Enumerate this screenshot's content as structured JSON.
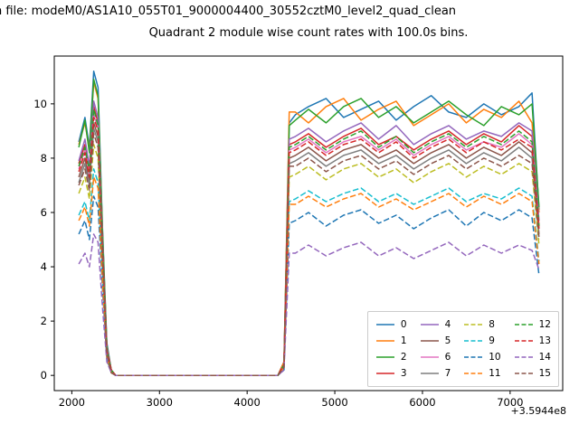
{
  "figure": {
    "suptitle": "n file: modeM0/AS1A10_055T01_9000004400_30552cztM0_level2_quad_clean",
    "axes_title": "Quadrant 2 module wise count rates with 100.0s bins.",
    "x_offset_label": "+3.5944e8"
  },
  "chart_data": {
    "type": "line",
    "title": "Quadrant 2 module wise count rates with 100.0s bins.",
    "xlabel": "",
    "ylabel": "",
    "x_offset": "+3.5944e8",
    "xlim": [
      1800,
      7600
    ],
    "ylim": [
      -0.56,
      11.76
    ],
    "xticks": [
      2000,
      3000,
      4000,
      5000,
      6000,
      7000
    ],
    "yticks": [
      0,
      2,
      4,
      6,
      8,
      10
    ],
    "grid": false,
    "legend_position": "lower right",
    "legend_columns": 4,
    "x": [
      2080,
      2150,
      2200,
      2250,
      2300,
      2350,
      2400,
      2450,
      2500,
      3000,
      3500,
      4000,
      4350,
      4420,
      4480,
      4550,
      4700,
      4900,
      5100,
      5300,
      5500,
      5700,
      5900,
      6100,
      6300,
      6500,
      6700,
      6900,
      7100,
      7250,
      7330
    ],
    "series": [
      {
        "name": "0",
        "color": "#1f77b4",
        "style": "solid",
        "values": [
          8.6,
          9.5,
          8.4,
          11.2,
          10.6,
          5.4,
          1.2,
          0.2,
          0,
          0,
          0,
          0,
          0,
          0.5,
          9.3,
          9.6,
          9.9,
          10.2,
          9.5,
          9.8,
          10.1,
          9.4,
          9.9,
          10.3,
          9.7,
          9.5,
          10.0,
          9.6,
          9.9,
          10.4,
          6.1
        ]
      },
      {
        "name": "1",
        "color": "#ff7f0e",
        "style": "solid",
        "values": [
          8.5,
          9.3,
          8.3,
          10.8,
          10.2,
          5.2,
          1.1,
          0.2,
          0,
          0,
          0,
          0,
          0,
          0.5,
          9.7,
          9.7,
          9.3,
          9.9,
          10.2,
          9.4,
          9.8,
          10.1,
          9.2,
          9.6,
          10.0,
          9.3,
          9.8,
          9.5,
          10.1,
          9.3,
          6.0
        ]
      },
      {
        "name": "2",
        "color": "#2ca02c",
        "style": "solid",
        "values": [
          8.4,
          9.4,
          8.2,
          10.9,
          10.3,
          5.3,
          1.1,
          0.2,
          0,
          0,
          0,
          0,
          0,
          0.4,
          9.2,
          9.4,
          9.8,
          9.3,
          9.9,
          10.2,
          9.5,
          9.9,
          9.3,
          9.7,
          10.1,
          9.6,
          9.2,
          9.9,
          9.6,
          10.0,
          6.2
        ]
      },
      {
        "name": "3",
        "color": "#d62728",
        "style": "solid",
        "values": [
          7.8,
          8.5,
          7.6,
          9.9,
          9.3,
          4.8,
          1.0,
          0.2,
          0,
          0,
          0,
          0,
          0,
          0.4,
          8.5,
          8.6,
          8.9,
          8.4,
          8.8,
          9.1,
          8.5,
          8.8,
          8.3,
          8.7,
          9.0,
          8.5,
          8.9,
          8.6,
          9.2,
          8.8,
          5.5
        ]
      },
      {
        "name": "4",
        "color": "#9467bd",
        "style": "solid",
        "values": [
          7.9,
          8.7,
          7.7,
          10.1,
          9.5,
          4.9,
          1.0,
          0.2,
          0,
          0,
          0,
          0,
          0,
          0.4,
          8.7,
          8.8,
          9.1,
          8.6,
          9.0,
          9.3,
          8.7,
          9.2,
          8.5,
          8.9,
          9.2,
          8.7,
          9.0,
          8.8,
          9.3,
          9.0,
          5.7
        ]
      },
      {
        "name": "5",
        "color": "#8c564b",
        "style": "solid",
        "values": [
          7.3,
          8.0,
          7.1,
          9.3,
          8.8,
          4.5,
          0.9,
          0.2,
          0,
          0,
          0,
          0,
          0,
          0.4,
          8.0,
          8.1,
          8.4,
          7.9,
          8.3,
          8.5,
          8.0,
          8.3,
          7.8,
          8.2,
          8.5,
          8.0,
          8.4,
          8.1,
          8.6,
          8.2,
          5.2
        ]
      },
      {
        "name": "6",
        "color": "#e377c2",
        "style": "solid",
        "values": [
          7.6,
          8.3,
          7.4,
          9.6,
          9.1,
          4.7,
          0.9,
          0.2,
          0,
          0,
          0,
          0,
          0,
          0.4,
          8.3,
          8.4,
          8.7,
          8.2,
          8.6,
          8.8,
          8.3,
          8.7,
          8.1,
          8.5,
          8.8,
          8.3,
          8.6,
          8.4,
          8.9,
          8.5,
          5.4
        ]
      },
      {
        "name": "7",
        "color": "#7f7f7f",
        "style": "solid",
        "values": [
          7.1,
          7.8,
          7.0,
          9.1,
          8.6,
          4.4,
          0.9,
          0.2,
          0,
          0,
          0,
          0,
          0,
          0.3,
          7.8,
          7.9,
          8.2,
          7.7,
          8.1,
          8.3,
          7.8,
          8.1,
          7.6,
          8.0,
          8.3,
          7.8,
          8.2,
          7.9,
          8.4,
          8.0,
          5.1
        ]
      },
      {
        "name": "8",
        "color": "#bcbd22",
        "style": "dashed",
        "values": [
          6.7,
          7.3,
          6.5,
          8.5,
          8.0,
          4.1,
          0.8,
          0.1,
          0,
          0,
          0,
          0,
          0,
          0.3,
          7.3,
          7.4,
          7.7,
          7.2,
          7.6,
          7.8,
          7.3,
          7.6,
          7.1,
          7.5,
          7.8,
          7.3,
          7.7,
          7.4,
          7.8,
          7.5,
          4.8
        ]
      },
      {
        "name": "9",
        "color": "#17becf",
        "style": "dashed",
        "values": [
          5.9,
          6.4,
          5.7,
          7.6,
          7.1,
          3.6,
          0.7,
          0.1,
          0,
          0,
          0,
          0,
          0,
          0.3,
          6.4,
          6.5,
          6.8,
          6.4,
          6.7,
          6.9,
          6.4,
          6.7,
          6.3,
          6.6,
          6.9,
          6.4,
          6.7,
          6.5,
          6.9,
          6.6,
          4.2
        ]
      },
      {
        "name": "10",
        "color": "#1f77b4",
        "style": "dashed",
        "values": [
          5.2,
          5.7,
          5.0,
          6.6,
          6.2,
          3.2,
          0.6,
          0.1,
          0,
          0,
          0,
          0,
          0,
          0.2,
          5.6,
          5.7,
          6.0,
          5.5,
          5.9,
          6.1,
          5.6,
          5.9,
          5.4,
          5.8,
          6.1,
          5.5,
          6.0,
          5.7,
          6.1,
          5.8,
          3.7
        ]
      },
      {
        "name": "11",
        "color": "#ff7f0e",
        "style": "dashed",
        "values": [
          5.7,
          6.2,
          5.5,
          7.3,
          6.9,
          3.5,
          0.7,
          0.1,
          0,
          0,
          0,
          0,
          0,
          0.3,
          6.3,
          6.3,
          6.6,
          6.2,
          6.5,
          6.7,
          6.2,
          6.5,
          6.1,
          6.4,
          6.7,
          6.2,
          6.6,
          6.3,
          6.7,
          6.4,
          4.1
        ]
      },
      {
        "name": "12",
        "color": "#2ca02c",
        "style": "dashed",
        "values": [
          7.7,
          8.4,
          7.5,
          9.8,
          9.2,
          4.7,
          0.9,
          0.2,
          0,
          0,
          0,
          0,
          0,
          0.4,
          8.4,
          8.5,
          8.8,
          8.3,
          8.7,
          9.0,
          8.4,
          8.8,
          8.2,
          8.6,
          8.9,
          8.4,
          8.8,
          8.5,
          9.0,
          8.6,
          5.5
        ]
      },
      {
        "name": "13",
        "color": "#d62728",
        "style": "dashed",
        "values": [
          7.5,
          8.2,
          7.3,
          9.5,
          9.0,
          4.6,
          0.9,
          0.2,
          0,
          0,
          0,
          0,
          0,
          0.4,
          8.2,
          8.3,
          8.6,
          8.1,
          8.5,
          8.7,
          8.2,
          8.6,
          8.0,
          8.4,
          8.7,
          8.2,
          8.6,
          8.3,
          8.7,
          8.4,
          5.4
        ]
      },
      {
        "name": "14",
        "color": "#9467bd",
        "style": "dashed",
        "values": [
          4.1,
          4.5,
          4.0,
          5.2,
          4.9,
          2.5,
          0.5,
          0.1,
          0,
          0,
          0,
          0,
          0,
          0.2,
          4.5,
          4.5,
          4.8,
          4.4,
          4.7,
          4.9,
          4.4,
          4.7,
          4.3,
          4.6,
          4.9,
          4.4,
          4.8,
          4.5,
          4.8,
          4.6,
          3.9
        ]
      },
      {
        "name": "15",
        "color": "#8c564b",
        "style": "dashed",
        "values": [
          7.0,
          7.6,
          6.8,
          8.9,
          8.4,
          4.3,
          0.8,
          0.1,
          0,
          0,
          0,
          0,
          0,
          0.3,
          7.7,
          7.7,
          8.0,
          7.5,
          7.9,
          8.1,
          7.6,
          7.9,
          7.4,
          7.8,
          8.1,
          7.6,
          8.0,
          7.7,
          8.1,
          7.8,
          5.0
        ]
      }
    ]
  }
}
